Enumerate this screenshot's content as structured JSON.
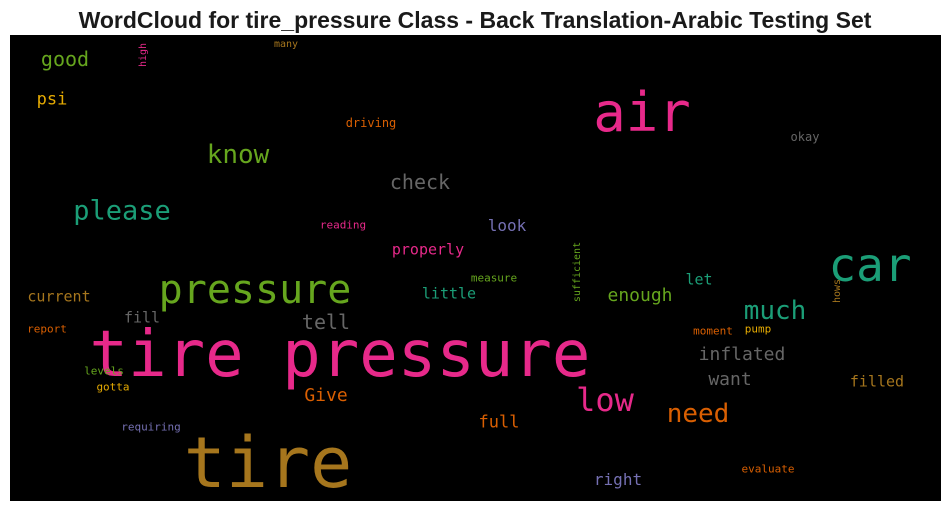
{
  "chart_data": {
    "type": "wordcloud",
    "title": "WordCloud for tire_pressure Class - Back Translation-Arabic Testing Set",
    "background": "#000000",
    "words": [
      {
        "text": "tire pressure",
        "weight": 64,
        "color": "#e7298a"
      },
      {
        "text": "tire",
        "weight": 70,
        "color": "#a6761d"
      },
      {
        "text": "air",
        "weight": 54,
        "color": "#e7298a"
      },
      {
        "text": "car",
        "weight": 46,
        "color": "#1b9e77"
      },
      {
        "text": "pressure",
        "weight": 40,
        "color": "#66a61e"
      },
      {
        "text": "low",
        "weight": 32,
        "color": "#e7298a"
      },
      {
        "text": "much",
        "weight": 26,
        "color": "#1b9e77"
      },
      {
        "text": "need",
        "weight": 26,
        "color": "#d95f02"
      },
      {
        "text": "please",
        "weight": 27,
        "color": "#1b9e77"
      },
      {
        "text": "know",
        "weight": 26,
        "color": "#66a61e"
      },
      {
        "text": "check",
        "weight": 20,
        "color": "#666666"
      },
      {
        "text": "good",
        "weight": 20,
        "color": "#66a61e"
      },
      {
        "text": "tell",
        "weight": 20,
        "color": "#666666"
      },
      {
        "text": "inflated",
        "weight": 18,
        "color": "#666666"
      },
      {
        "text": "want",
        "weight": 18,
        "color": "#666666"
      },
      {
        "text": "Give",
        "weight": 18,
        "color": "#d95f02"
      },
      {
        "text": "enough",
        "weight": 18,
        "color": "#66a61e"
      },
      {
        "text": "psi",
        "weight": 17,
        "color": "#e6ab02"
      },
      {
        "text": "full",
        "weight": 17,
        "color": "#d95f02"
      },
      {
        "text": "filled",
        "weight": 15,
        "color": "#a6761d"
      },
      {
        "text": "right",
        "weight": 16,
        "color": "#7570b3"
      },
      {
        "text": "look",
        "weight": 16,
        "color": "#7570b3"
      },
      {
        "text": "properly",
        "weight": 15,
        "color": "#e7298a"
      },
      {
        "text": "little",
        "weight": 15,
        "color": "#1b9e77"
      },
      {
        "text": "current",
        "weight": 15,
        "color": "#a6761d"
      },
      {
        "text": "let",
        "weight": 15,
        "color": "#1b9e77"
      },
      {
        "text": "fill",
        "weight": 15,
        "color": "#666666"
      },
      {
        "text": "driving",
        "weight": 12,
        "color": "#d95f02"
      },
      {
        "text": "okay",
        "weight": 12,
        "color": "#666666"
      },
      {
        "text": "reading",
        "weight": 11,
        "color": "#e7298a"
      },
      {
        "text": "measure",
        "weight": 11,
        "color": "#66a61e"
      },
      {
        "text": "report",
        "weight": 11,
        "color": "#d95f02"
      },
      {
        "text": "moment",
        "weight": 11,
        "color": "#d95f02"
      },
      {
        "text": "pump",
        "weight": 11,
        "color": "#e6ab02"
      },
      {
        "text": "levels",
        "weight": 11,
        "color": "#66a61e"
      },
      {
        "text": "gotta",
        "weight": 11,
        "color": "#e6ab02"
      },
      {
        "text": "requiring",
        "weight": 11,
        "color": "#7570b3"
      },
      {
        "text": "evaluate",
        "weight": 11,
        "color": "#d95f02"
      },
      {
        "text": "many",
        "weight": 10,
        "color": "#a6761d"
      },
      {
        "text": "high",
        "weight": 10,
        "color": "#e7298a"
      },
      {
        "text": "sufficient",
        "weight": 10,
        "color": "#66a61e"
      },
      {
        "text": "hows",
        "weight": 10,
        "color": "#a6761d"
      }
    ]
  }
}
